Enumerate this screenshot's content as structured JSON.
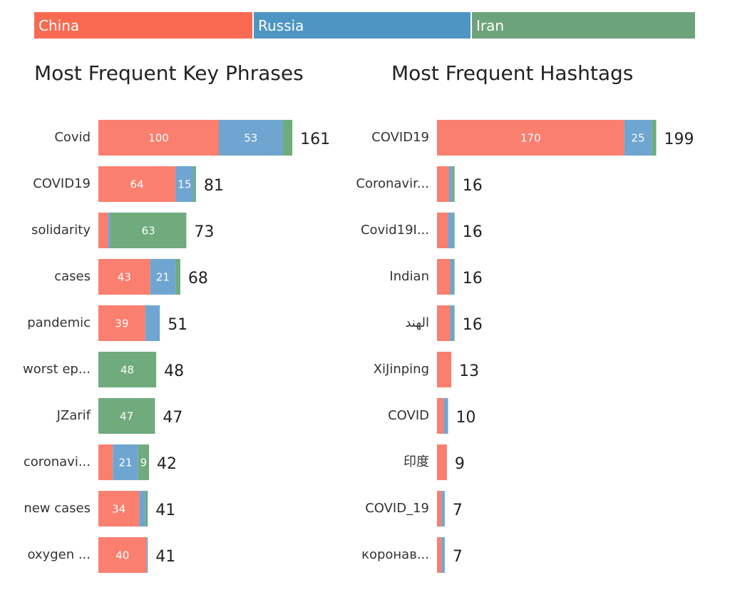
{
  "colors": {
    "China": "#fa7f6f",
    "Russia": "#6fa5d1",
    "Iran": "#6fab7d"
  },
  "legend": [
    {
      "name": "China",
      "color": "#f96a52"
    },
    {
      "name": "Russia",
      "color": "#4e95c4"
    },
    {
      "name": "Iran",
      "color": "#6da37a"
    }
  ],
  "chart_data": [
    {
      "type": "bar",
      "orientation": "horizontal",
      "stacked": true,
      "title": "Most Frequent Key Phrases",
      "categories": [
        "Covid",
        "COVID19",
        "solidarity",
        "cases",
        "pandemic",
        "worst ep...",
        "JZarif",
        "coronavi...",
        "new cases",
        "oxygen ..."
      ],
      "series": [
        {
          "name": "China",
          "values": [
            100,
            64,
            8,
            43,
            39,
            0,
            0,
            12,
            34,
            40
          ]
        },
        {
          "name": "Russia",
          "values": [
            53,
            15,
            2,
            21,
            12,
            0,
            0,
            21,
            5,
            1
          ]
        },
        {
          "name": "Iran",
          "values": [
            8,
            2,
            63,
            4,
            0,
            48,
            47,
            9,
            2,
            0
          ]
        }
      ],
      "totals": [
        161,
        81,
        73,
        68,
        51,
        48,
        47,
        42,
        41,
        41
      ],
      "segment_labels": [
        [
          "100",
          "53",
          ""
        ],
        [
          "64",
          "15",
          ""
        ],
        [
          "",
          "",
          "63"
        ],
        [
          "43",
          "21",
          ""
        ],
        [
          "39",
          "",
          ""
        ],
        [
          "",
          "",
          "48"
        ],
        [
          "",
          "",
          "47"
        ],
        [
          "",
          "21",
          "9"
        ],
        [
          "34",
          "",
          ""
        ],
        [
          "40",
          "",
          ""
        ]
      ]
    },
    {
      "type": "bar",
      "orientation": "horizontal",
      "stacked": true,
      "title": "Most Frequent Hashtags",
      "categories": [
        "COVID19",
        "Coronavir...",
        "Covid19I...",
        "Indian",
        "الهند",
        "XiJinping",
        "COVID",
        "印度",
        "COVID_19",
        "коронав..."
      ],
      "series": [
        {
          "name": "China",
          "values": [
            170,
            11,
            10,
            12,
            12,
            13,
            6,
            9,
            4,
            4
          ]
        },
        {
          "name": "Russia",
          "values": [
            25,
            3,
            5,
            3,
            3,
            0,
            4,
            0,
            3,
            3
          ]
        },
        {
          "name": "Iran",
          "values": [
            4,
            2,
            1,
            1,
            1,
            0,
            0,
            0,
            0,
            0
          ]
        }
      ],
      "totals": [
        199,
        16,
        16,
        16,
        16,
        13,
        10,
        9,
        7,
        7
      ],
      "segment_labels": [
        [
          "170",
          "25",
          ""
        ],
        [
          "",
          "",
          ""
        ],
        [
          "",
          "",
          ""
        ],
        [
          "",
          "",
          ""
        ],
        [
          "",
          "",
          ""
        ],
        [
          "",
          "",
          ""
        ],
        [
          "",
          "",
          ""
        ],
        [
          "",
          "",
          ""
        ],
        [
          "",
          "",
          ""
        ],
        [
          "",
          "",
          ""
        ]
      ]
    }
  ]
}
